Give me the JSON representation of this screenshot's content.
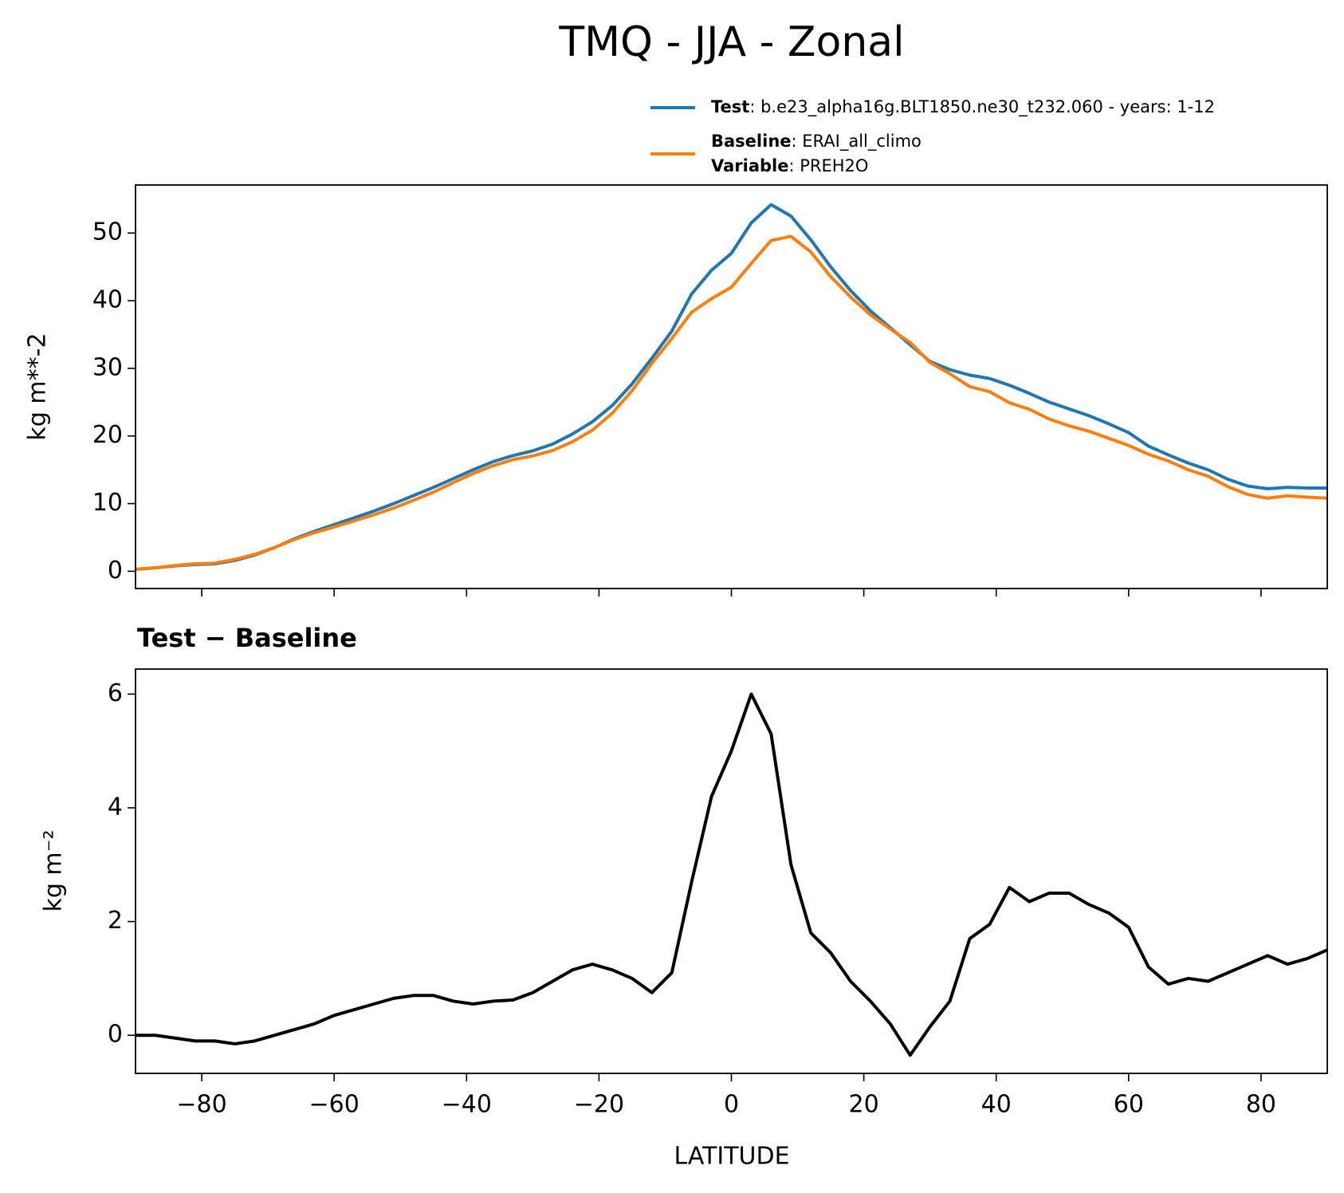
{
  "chart_data": [
    {
      "type": "line",
      "title": "TMQ - JJA - Zonal",
      "ylabel": "kg m**-2",
      "x": [
        -90,
        -87,
        -84,
        -81,
        -78,
        -75,
        -72,
        -69,
        -66,
        -63,
        -60,
        -57,
        -54,
        -51,
        -48,
        -45,
        -42,
        -39,
        -36,
        -33,
        -30,
        -27,
        -24,
        -21,
        -18,
        -15,
        -12,
        -9,
        -6,
        -3,
        0,
        3,
        6,
        9,
        12,
        15,
        18,
        21,
        24,
        27,
        30,
        33,
        36,
        39,
        42,
        45,
        48,
        51,
        54,
        57,
        60,
        63,
        66,
        69,
        72,
        75,
        78,
        81,
        84,
        87,
        90
      ],
      "series": [
        {
          "name": "Test",
          "detail": ": b.e23_alpha16g.BLT1850.ne30_t232.060 - years: 1-12",
          "color": "#1f77b4",
          "values": [
            0.3,
            0.5,
            0.8,
            1.0,
            1.1,
            1.6,
            2.4,
            3.5,
            4.8,
            5.9,
            6.9,
            7.9,
            8.9,
            10.0,
            11.2,
            12.4,
            13.7,
            15.0,
            16.2,
            17.1,
            17.8,
            18.8,
            20.3,
            22.1,
            24.5,
            27.7,
            31.5,
            35.5,
            41,
            44.5,
            47,
            51.5,
            54.2,
            52.5,
            49,
            45,
            41.5,
            38.5,
            36,
            33.5,
            31,
            29.8,
            29,
            28.5,
            27.5,
            26.3,
            25,
            24,
            23,
            21.8,
            20.5,
            18.5,
            17.2,
            16,
            15,
            13.6,
            12.6,
            12.2,
            12.4,
            12.3,
            12.3
          ]
        },
        {
          "name": "Baseline",
          "detail": ": ERAI_all_climo",
          "color": "#ff7f0e",
          "values": [
            0.3,
            0.5,
            0.85,
            1.1,
            1.2,
            1.75,
            2.5,
            3.5,
            4.7,
            5.7,
            6.55,
            7.45,
            8.35,
            9.35,
            10.5,
            11.7,
            13.1,
            14.45,
            15.6,
            16.5,
            17.05,
            17.85,
            19.15,
            20.85,
            23.35,
            26.7,
            30.75,
            34.4,
            38.3,
            40.3,
            42,
            45.5,
            48.9,
            49.5,
            47.2,
            43.55,
            40.55,
            37.9,
            35.8,
            33.85,
            30.85,
            29.2,
            27.3,
            26.55,
            24.9,
            23.95,
            22.5,
            21.5,
            20.7,
            19.65,
            18.6,
            17.3,
            16.3,
            15,
            14.05,
            12.5,
            11.35,
            10.8,
            11.15,
            10.95,
            10.8
          ]
        }
      ],
      "variable": {
        "label": "Variable",
        "text": ": PREH2O"
      },
      "xlim": [
        -90,
        90
      ],
      "xticks": [
        -80,
        -60,
        -40,
        -20,
        0,
        20,
        40,
        60,
        80
      ],
      "ylim": [
        -2.55,
        57.1
      ],
      "yticks": [
        0,
        10,
        20,
        30,
        40,
        50
      ]
    },
    {
      "type": "line",
      "title": "Test − Baseline",
      "ylabel": "kg m⁻²",
      "xlabel": "LATITUDE",
      "x": [
        -90,
        -87,
        -84,
        -81,
        -78,
        -75,
        -72,
        -69,
        -66,
        -63,
        -60,
        -57,
        -54,
        -51,
        -48,
        -45,
        -42,
        -39,
        -36,
        -33,
        -30,
        -27,
        -24,
        -21,
        -18,
        -15,
        -12,
        -9,
        -6,
        -3,
        0,
        3,
        6,
        9,
        12,
        15,
        18,
        21,
        24,
        27,
        30,
        33,
        36,
        39,
        42,
        45,
        48,
        51,
        54,
        57,
        60,
        63,
        66,
        69,
        72,
        75,
        78,
        81,
        84,
        87,
        90
      ],
      "series": [
        {
          "color": "#000000",
          "values": [
            0,
            0,
            -0.05,
            -0.1,
            -0.1,
            -0.15,
            -0.1,
            0.0,
            0.1,
            0.2,
            0.35,
            0.45,
            0.55,
            0.65,
            0.7,
            0.7,
            0.6,
            0.55,
            0.6,
            0.62,
            0.75,
            0.95,
            1.15,
            1.25,
            1.15,
            1.0,
            0.75,
            1.1,
            2.7,
            4.2,
            5.0,
            6.0,
            5.3,
            3.0,
            1.8,
            1.45,
            0.95,
            0.6,
            0.2,
            -0.35,
            0.15,
            0.6,
            1.7,
            1.95,
            2.6,
            2.35,
            2.5,
            2.5,
            2.3,
            2.15,
            1.9,
            1.2,
            0.9,
            1.0,
            0.95,
            1.1,
            1.25,
            1.4,
            1.25,
            1.35,
            1.5
          ]
        }
      ],
      "xlim": [
        -90,
        90
      ],
      "xticks": [
        {
          "value": -80,
          "label": "−80"
        },
        {
          "value": -60,
          "label": "−60"
        },
        {
          "value": -40,
          "label": "−40"
        },
        {
          "value": -20,
          "label": "−20"
        },
        0,
        20,
        40,
        60,
        80
      ],
      "ylim": [
        -0.67,
        6.44
      ],
      "yticks": [
        0,
        2,
        4,
        6
      ]
    }
  ]
}
